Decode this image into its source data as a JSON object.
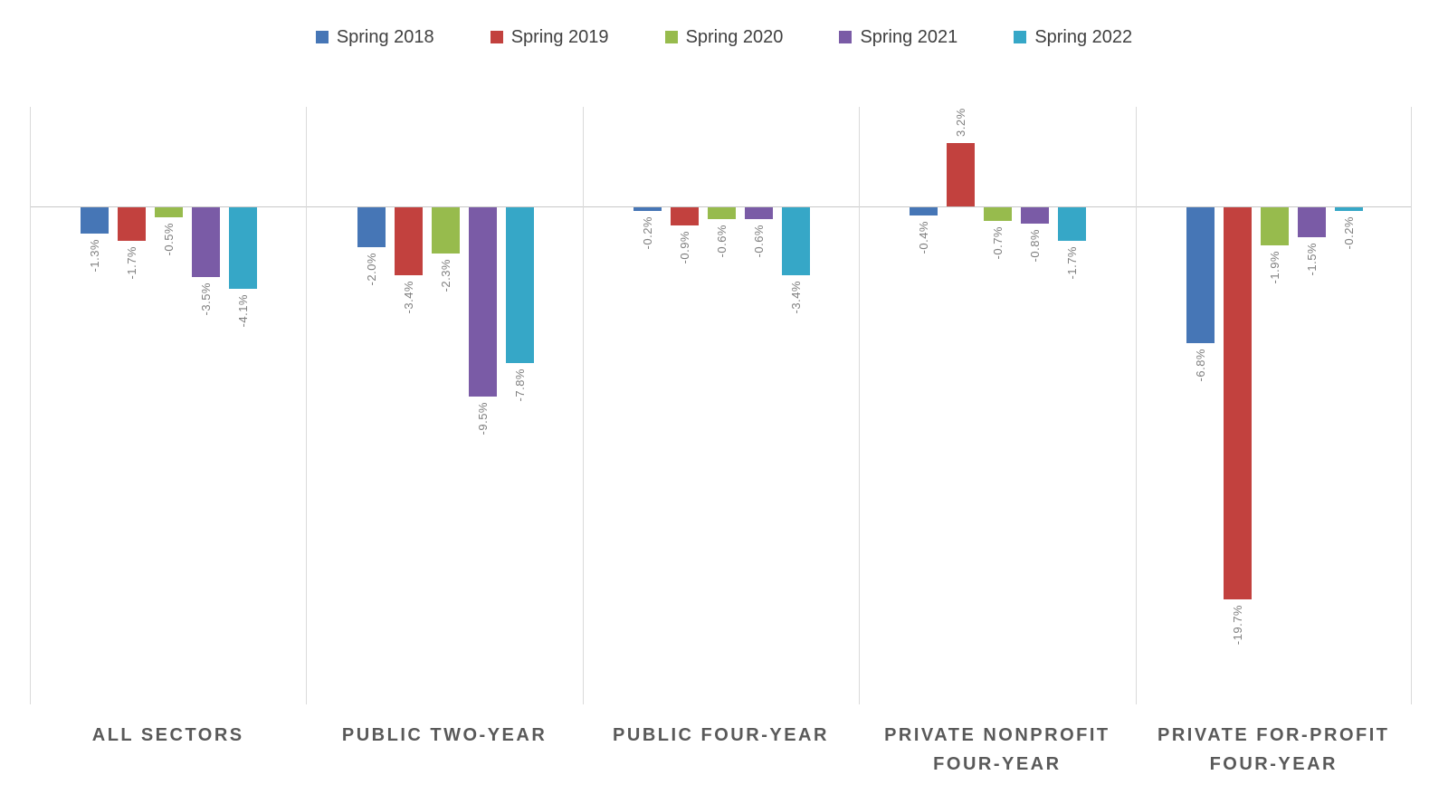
{
  "chart_data": {
    "type": "bar",
    "title": "",
    "legend_position": "top",
    "grid": "vertical-panel-separators-and-zero-line",
    "value_suffix": "%",
    "ylim": [
      -25,
      5
    ],
    "categories": [
      "ALL SECTORS",
      "PUBLIC TWO-YEAR",
      "PUBLIC FOUR-YEAR",
      "PRIVATE NONPROFIT FOUR-YEAR",
      "PRIVATE FOR-PROFIT FOUR-YEAR"
    ],
    "series": [
      {
        "name": "Spring 2018",
        "color": "#4676b6",
        "values": [
          -1.3,
          -2.0,
          -0.2,
          -0.4,
          -6.8
        ]
      },
      {
        "name": "Spring 2019",
        "color": "#c2413e",
        "values": [
          -1.7,
          -3.4,
          -0.9,
          3.2,
          -19.7
        ]
      },
      {
        "name": "Spring 2020",
        "color": "#97bb4d",
        "values": [
          -0.5,
          -2.3,
          -0.6,
          -0.7,
          -1.9
        ]
      },
      {
        "name": "Spring 2021",
        "color": "#7a5ba6",
        "values": [
          -3.5,
          -9.5,
          -0.6,
          -0.8,
          -1.5
        ]
      },
      {
        "name": "Spring 2022",
        "color": "#36a7c7",
        "values": [
          -4.1,
          -7.8,
          -3.4,
          -1.7,
          -0.2
        ]
      }
    ],
    "data_labels": true,
    "data_label_color": "#7f7f7f",
    "axis_label_color": "#595959",
    "gridline_color": "#dadada"
  }
}
